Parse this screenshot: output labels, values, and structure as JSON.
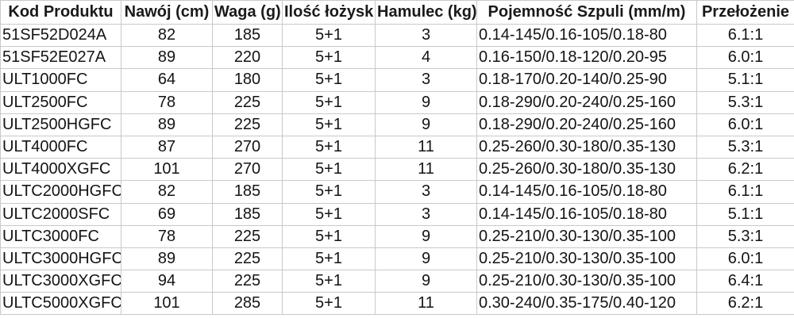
{
  "table": {
    "headers": [
      "Kod Produktu",
      "Nawój (cm)",
      "Waga (g)",
      "Ilość łożysk",
      "Hamulec (kg)",
      "Pojemność Szpuli (mm/m)",
      "Przełożenie"
    ],
    "rows": [
      [
        "51SF52D024A",
        "82",
        "185",
        "5+1",
        "3",
        "0.14-145/0.16-105/0.18-80",
        "6.1:1"
      ],
      [
        "51SF52E027A",
        "89",
        "220",
        "5+1",
        "4",
        "0.16-150/0.18-120/0.20-95",
        "6.0:1"
      ],
      [
        "ULT1000FC",
        "64",
        "180",
        "5+1",
        "3",
        "0.18-170/0.20-140/0.25-90",
        "5.1:1"
      ],
      [
        "ULT2500FC",
        "78",
        "225",
        "5+1",
        "9",
        "0.18-290/0.20-240/0.25-160",
        "5.3:1"
      ],
      [
        "ULT2500HGFC",
        "89",
        "225",
        "5+1",
        "9",
        "0.18-290/0.20-240/0.25-160",
        "6.0:1"
      ],
      [
        "ULT4000FC",
        "87",
        "270",
        "5+1",
        "11",
        "0.25-260/0.30-180/0.35-130",
        "5.3:1"
      ],
      [
        "ULT4000XGFC",
        "101",
        "270",
        "5+1",
        "11",
        "0.25-260/0.30-180/0.35-130",
        "6.2:1"
      ],
      [
        "ULTC2000HGFC",
        "82",
        "185",
        "5+1",
        "3",
        "0.14-145/0.16-105/0.18-80",
        "6.1:1"
      ],
      [
        "ULTC2000SFC",
        "69",
        "185",
        "5+1",
        "3",
        "0.14-145/0.16-105/0.18-80",
        "5.1:1"
      ],
      [
        "ULTC3000FC",
        "78",
        "225",
        "5+1",
        "9",
        "0.25-210/0.30-130/0.35-100",
        "5.3:1"
      ],
      [
        "ULTC3000HGFC",
        "89",
        "225",
        "5+1",
        "9",
        "0.25-210/0.30-130/0.35-100",
        "6.0:1"
      ],
      [
        "ULTC3000XGFC",
        "94",
        "225",
        "5+1",
        "9",
        "0.25-210/0.30-130/0.35-100",
        "6.4:1"
      ],
      [
        "ULTC5000XGFC",
        "101",
        "285",
        "5+1",
        "11",
        "0.30-240/0.35-175/0.40-120",
        "6.2:1"
      ]
    ],
    "colors": {
      "gridline": "#c9c9c9",
      "background": "#ffffff",
      "text": "#141414"
    }
  }
}
